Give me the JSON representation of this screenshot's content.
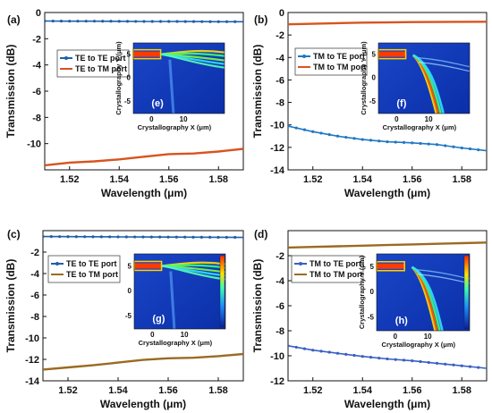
{
  "chart_data": [
    {
      "type": "line",
      "panel_label": "(a)",
      "xlabel": "Wavelength (μm)",
      "ylabel": "Transmission (dB)",
      "xlim": [
        1.51,
        1.59
      ],
      "ylim": [
        -12,
        0
      ],
      "xticks": [
        1.52,
        1.54,
        1.56,
        1.58
      ],
      "yticks": [
        0,
        -2,
        -4,
        -6,
        -8,
        -10
      ],
      "legend_position": "left",
      "series": [
        {
          "name": "TE to TE port",
          "color": "#1f5fa8",
          "markers": true,
          "x": [
            1.51,
            1.52,
            1.53,
            1.54,
            1.55,
            1.56,
            1.57,
            1.58,
            1.59
          ],
          "y": [
            -0.65,
            -0.66,
            -0.66,
            -0.67,
            -0.68,
            -0.68,
            -0.69,
            -0.7,
            -0.7
          ]
        },
        {
          "name": "TE to TM port",
          "color": "#d8531f",
          "markers": false,
          "x": [
            1.51,
            1.52,
            1.53,
            1.54,
            1.55,
            1.56,
            1.57,
            1.58,
            1.59
          ],
          "y": [
            -11.65,
            -11.45,
            -11.35,
            -11.2,
            -11.0,
            -10.8,
            -10.75,
            -10.6,
            -10.4
          ]
        }
      ],
      "inset": {
        "label": "(e)",
        "xlabel": "Crystallography X (μm)",
        "ylabel": "Crystallography Y (μm)",
        "xticks": [
          "0",
          "10"
        ],
        "yticks": [
          "5",
          "0",
          "-5"
        ],
        "colorbar": false
      }
    },
    {
      "type": "line",
      "panel_label": "(b)",
      "xlabel": "Wavelength (μm)",
      "ylabel": "Transmission (dB)",
      "xlim": [
        1.51,
        1.59
      ],
      "ylim": [
        -14,
        0
      ],
      "xticks": [
        1.52,
        1.54,
        1.56,
        1.58
      ],
      "yticks": [
        0,
        -2,
        -4,
        -6,
        -8,
        -10,
        -12,
        -14
      ],
      "legend_position": "left",
      "series": [
        {
          "name": "TM to TE port",
          "color": "#1f77c4",
          "markers": true,
          "x": [
            1.51,
            1.52,
            1.53,
            1.54,
            1.55,
            1.56,
            1.57,
            1.58,
            1.59
          ],
          "y": [
            -10.1,
            -10.6,
            -11.0,
            -11.3,
            -11.5,
            -11.6,
            -11.75,
            -12.05,
            -12.3
          ]
        },
        {
          "name": "TM to TM port",
          "color": "#d8531f",
          "markers": false,
          "x": [
            1.51,
            1.52,
            1.53,
            1.54,
            1.55,
            1.56,
            1.57,
            1.58,
            1.59
          ],
          "y": [
            -1.05,
            -1.0,
            -0.95,
            -0.9,
            -0.88,
            -0.85,
            -0.84,
            -0.83,
            -0.82
          ]
        }
      ],
      "inset": {
        "label": "(f)",
        "xlabel": "Crystallography X (μm)",
        "ylabel": "Crystallography Y (μm)",
        "xticks": [
          "0",
          "10"
        ],
        "yticks": [
          "5",
          "0",
          "-5"
        ],
        "colorbar": false
      }
    },
    {
      "type": "line",
      "panel_label": "(c)",
      "xlabel": "Wavelength (μm)",
      "ylabel": "Transmission (dB)",
      "xlim": [
        1.51,
        1.59
      ],
      "ylim": [
        -14,
        0
      ],
      "xticks": [
        1.52,
        1.54,
        1.56,
        1.58
      ],
      "yticks": [
        -2,
        -4,
        -6,
        -8,
        -10,
        -12,
        -14
      ],
      "legend_position": "left",
      "series": [
        {
          "name": "TE to TE port",
          "color": "#1f5fa8",
          "markers": true,
          "x": [
            1.51,
            1.52,
            1.53,
            1.54,
            1.55,
            1.56,
            1.57,
            1.58,
            1.59
          ],
          "y": [
            -0.55,
            -0.56,
            -0.57,
            -0.58,
            -0.59,
            -0.6,
            -0.61,
            -0.62,
            -0.63
          ]
        },
        {
          "name": "TE to TM port",
          "color": "#9a6a22",
          "markers": false,
          "x": [
            1.51,
            1.52,
            1.53,
            1.54,
            1.55,
            1.56,
            1.57,
            1.58,
            1.59
          ],
          "y": [
            -12.95,
            -12.75,
            -12.55,
            -12.3,
            -12.05,
            -11.9,
            -11.85,
            -11.7,
            -11.5
          ]
        }
      ],
      "inset": {
        "label": "(g)",
        "xlabel": "Crystallography X (μm)",
        "ylabel": "",
        "xticks": [
          "0",
          "10"
        ],
        "yticks": [
          "5",
          "0",
          "-5"
        ],
        "colorbar": true
      }
    },
    {
      "type": "line",
      "panel_label": "(d)",
      "xlabel": "Wavelength (μm)",
      "ylabel": "Transmission (dB)",
      "xlim": [
        1.51,
        1.59
      ],
      "ylim": [
        -12,
        0
      ],
      "xticks": [
        1.52,
        1.54,
        1.56,
        1.58
      ],
      "yticks": [
        -2,
        -4,
        -6,
        -8,
        -10,
        -12
      ],
      "legend_position": "left",
      "series": [
        {
          "name": "TM to TE port",
          "color": "#3a5fc4",
          "markers": true,
          "x": [
            1.51,
            1.52,
            1.53,
            1.54,
            1.55,
            1.56,
            1.57,
            1.58,
            1.59
          ],
          "y": [
            -9.2,
            -9.55,
            -9.8,
            -10.05,
            -10.25,
            -10.4,
            -10.6,
            -10.8,
            -11.0
          ]
        },
        {
          "name": "TM to TM port",
          "color": "#9a6a22",
          "markers": false,
          "x": [
            1.51,
            1.52,
            1.53,
            1.54,
            1.55,
            1.56,
            1.57,
            1.58,
            1.59
          ],
          "y": [
            -1.35,
            -1.3,
            -1.25,
            -1.2,
            -1.15,
            -1.1,
            -1.05,
            -1.0,
            -0.95
          ]
        }
      ],
      "inset": {
        "label": "(h)",
        "xlabel": "Crystallography X (μm)",
        "ylabel": "Crystallography Y (μm)",
        "xticks": [
          "0",
          "10"
        ],
        "yticks": [
          "5",
          "0",
          "-5"
        ],
        "colorbar": true
      }
    }
  ]
}
